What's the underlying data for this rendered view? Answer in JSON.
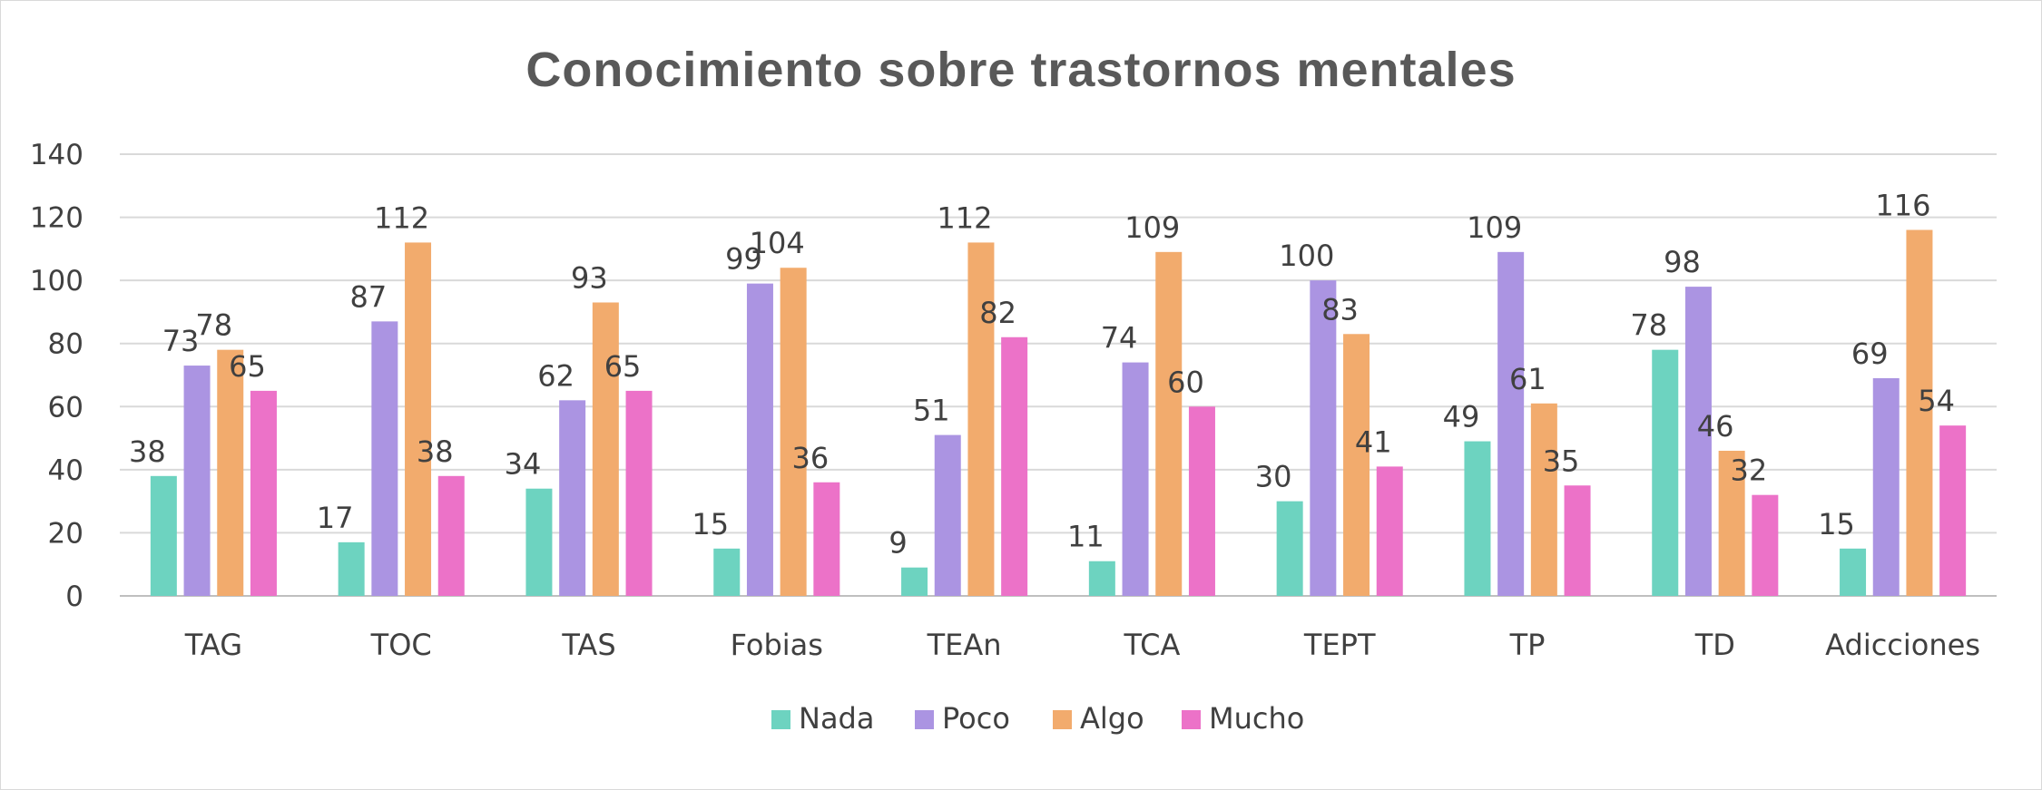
{
  "chart_data": {
    "type": "bar",
    "title": "Conocimiento sobre trastornos mentales",
    "xlabel": "",
    "ylabel": "",
    "ylim": [
      0,
      140
    ],
    "yticks": [
      0,
      20,
      40,
      60,
      80,
      100,
      120,
      140
    ],
    "grid": true,
    "legend_position": "bottom",
    "categories": [
      "TAG",
      "TOC",
      "TAS",
      "Fobias",
      "TEAn",
      "TCA",
      "TEPT",
      "TP",
      "TD",
      "Adicciones"
    ],
    "series": [
      {
        "name": "Nada",
        "color": "#6dd3c0",
        "values": [
          38,
          17,
          34,
          15,
          9,
          11,
          30,
          49,
          78,
          15
        ]
      },
      {
        "name": "Poco",
        "color": "#ab94e2",
        "values": [
          73,
          87,
          62,
          99,
          51,
          74,
          100,
          109,
          98,
          69
        ]
      },
      {
        "name": "Algo",
        "color": "#f2ab6d",
        "values": [
          78,
          112,
          93,
          104,
          112,
          109,
          83,
          61,
          46,
          116
        ]
      },
      {
        "name": "Mucho",
        "color": "#ec72c8",
        "values": [
          65,
          38,
          65,
          36,
          82,
          60,
          41,
          35,
          32,
          54
        ]
      }
    ]
  }
}
